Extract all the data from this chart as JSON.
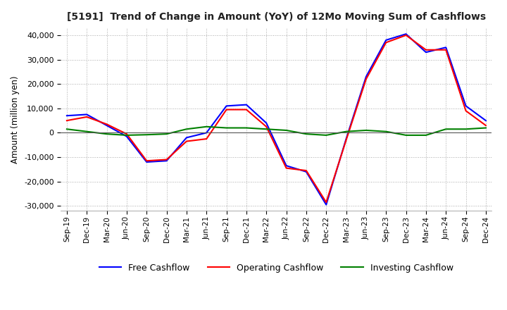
{
  "title": "[5191]  Trend of Change in Amount (YoY) of 12Mo Moving Sum of Cashflows",
  "ylabel": "Amount (million yen)",
  "ylim": [
    -32000,
    43000
  ],
  "yticks": [
    -30000,
    -20000,
    -10000,
    0,
    10000,
    20000,
    30000,
    40000
  ],
  "x_labels": [
    "Sep-19",
    "Dec-19",
    "Mar-20",
    "Jun-20",
    "Sep-20",
    "Dec-20",
    "Mar-21",
    "Jun-21",
    "Sep-21",
    "Dec-21",
    "Mar-22",
    "Jun-22",
    "Sep-22",
    "Dec-22",
    "Mar-23",
    "Jun-23",
    "Sep-23",
    "Dec-23",
    "Mar-24",
    "Jun-24",
    "Sep-24",
    "Dec-24"
  ],
  "operating_cashflow": [
    5000,
    6500,
    3500,
    -500,
    -11500,
    -11000,
    -3500,
    -2500,
    9500,
    9500,
    2500,
    -14500,
    -15500,
    -28500,
    -3000,
    22000,
    37000,
    40000,
    34000,
    34000,
    9000,
    3000
  ],
  "investing_cashflow": [
    1500,
    500,
    -500,
    -1000,
    -800,
    -500,
    1500,
    2500,
    2000,
    2000,
    1500,
    1000,
    -500,
    -1000,
    500,
    1000,
    500,
    -1000,
    -1000,
    1500,
    1500,
    2000
  ],
  "free_cashflow": [
    7000,
    7500,
    3000,
    -1500,
    -12000,
    -11500,
    -2000,
    0,
    11000,
    11500,
    4000,
    -13500,
    -16000,
    -29500,
    -2500,
    23000,
    38000,
    40500,
    33000,
    35000,
    11000,
    5000
  ],
  "operating_color": "#ff0000",
  "investing_color": "#008000",
  "free_color": "#0000ff",
  "background_color": "#ffffff",
  "grid_color": "#aaaaaa"
}
